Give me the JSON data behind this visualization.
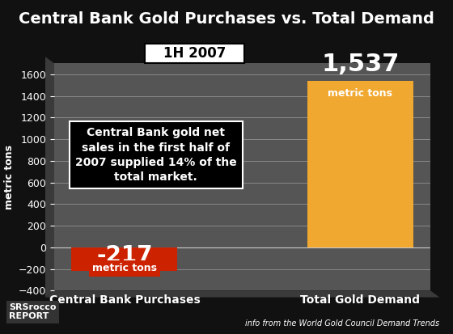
{
  "title": "Central Bank Gold Purchases vs. Total Demand",
  "subtitle": "1H 2007",
  "categories": [
    "Central Bank Purchases",
    "Total Gold Demand"
  ],
  "values": [
    -217,
    1537
  ],
  "bar_colors": [
    "#cc2200",
    "#f0a830"
  ],
  "background_color": "#111111",
  "plot_bg_color": "#555555",
  "ylabel": "metric tons",
  "ylim": [
    -400,
    1700
  ],
  "yticks": [
    -400,
    -200,
    0,
    200,
    400,
    600,
    800,
    1000,
    1200,
    1400,
    1600
  ],
  "bar1_label": "-217",
  "bar2_label": "1,537",
  "bar1_sublabel": "metric tons",
  "bar2_sublabel": "metric tons",
  "annotation": "Central Bank gold net\nsales in the first half of\n2007 supplied 14% of the\ntotal market.",
  "footer_left": "SRSrocco\nREPORT",
  "footer_right": "info from the World Gold Council Demand Trends",
  "title_color": "#ffffff",
  "label_color": "#ffffff",
  "tick_color": "#ffffff",
  "grid_color": "#888888"
}
